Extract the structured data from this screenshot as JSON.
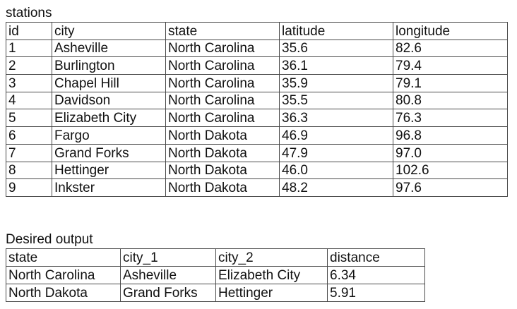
{
  "stations": {
    "caption": "stations",
    "columns": [
      "id",
      "city",
      "state",
      "latitude",
      "longitude"
    ],
    "rows": [
      [
        "1",
        "Asheville",
        "North Carolina",
        "35.6",
        "82.6"
      ],
      [
        "2",
        "Burlington",
        "North Carolina",
        "36.1",
        "79.4"
      ],
      [
        "3",
        "Chapel Hill",
        "North Carolina",
        "35.9",
        "79.1"
      ],
      [
        "4",
        "Davidson",
        "North Carolina",
        "35.5",
        "80.8"
      ],
      [
        "5",
        "Elizabeth City",
        "North Carolina",
        "36.3",
        "76.3"
      ],
      [
        "6",
        "Fargo",
        "North Dakota",
        "46.9",
        "96.8"
      ],
      [
        "7",
        "Grand Forks",
        "North Dakota",
        "47.9",
        "97.0"
      ],
      [
        "8",
        "Hettinger",
        "North Dakota",
        "46.0",
        "102.6"
      ],
      [
        "9",
        "Inkster",
        "North Dakota",
        "48.2",
        "97.6"
      ]
    ]
  },
  "output": {
    "caption": "Desired output",
    "columns": [
      "state",
      "city_1",
      "city_2",
      "distance"
    ],
    "rows": [
      [
        "North Carolina",
        "Asheville",
        "Elizabeth City",
        "6.34"
      ],
      [
        "North Dakota",
        "Grand Forks",
        "Hettinger",
        "5.91"
      ]
    ]
  }
}
